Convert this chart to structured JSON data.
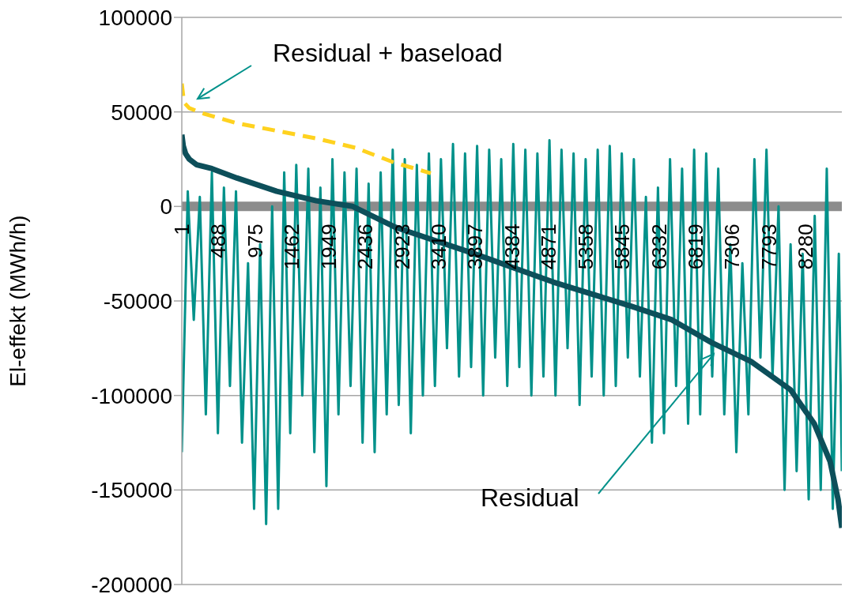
{
  "chart_data": {
    "type": "line",
    "ylabel": "El-effekt (MWh/h)",
    "xlim": [
      1,
      8760
    ],
    "xticks": [
      1,
      488,
      975,
      1462,
      1949,
      2436,
      2923,
      3410,
      3897,
      4384,
      4871,
      5358,
      5845,
      6332,
      6819,
      7306,
      7793,
      8280
    ],
    "annotations": [
      {
        "text": "Residual",
        "x": 7060,
        "y": -78000
      }
    ],
    "ylim": [
      -200000,
      100000
    ],
    "yticks": [
      -200000,
      -150000,
      -100000,
      -50000,
      0,
      50000,
      100000
    ],
    "grid": "y",
    "series": [
      {
        "color": "#00918a",
        "x": [
          1,
          80,
          160,
          240,
          320,
          400,
          480,
          560,
          640,
          720,
          800,
          880,
          960,
          1040,
          1120,
          1200,
          1280,
          1360,
          1440,
          1520,
          1600,
          1680,
          1760,
          1840,
          1920,
          2000,
          2080,
          2160,
          2240,
          2320,
          2400,
          2480,
          2560,
          2640,
          2720,
          2800,
          2880,
          2960,
          3040,
          3120,
          3200,
          3280,
          3360,
          3440,
          3520,
          3600,
          3680,
          3760,
          3840,
          3920,
          4000,
          4080,
          4160,
          4240,
          4320,
          4400,
          4480,
          4560,
          4640,
          4720,
          4800,
          4880,
          4960,
          5040,
          5120,
          5200,
          5280,
          5360,
          5440,
          5520,
          5600,
          5680,
          5760,
          5840,
          5920,
          6000,
          6080,
          6160,
          6240,
          6320,
          6400,
          6480,
          6560,
          6640,
          6720,
          6800,
          6880,
          6960,
          7040,
          7120,
          7200,
          7280,
          7360,
          7440,
          7520,
          7600,
          7680,
          7760,
          7840,
          7920,
          8000,
          8080,
          8160,
          8240,
          8320,
          8400,
          8480,
          8560,
          8640,
          8720,
          8760
        ],
        "values": [
          -130000,
          8000,
          -60000,
          5000,
          -110000,
          18000,
          -120000,
          10000,
          -95000,
          8000,
          -125000,
          -30000,
          -160000,
          -20000,
          -168000,
          0,
          -160000,
          18000,
          -120000,
          22000,
          -100000,
          20000,
          -130000,
          10000,
          -148000,
          25000,
          -110000,
          18000,
          -95000,
          20000,
          -125000,
          12000,
          -130000,
          18000,
          -110000,
          30000,
          -105000,
          25000,
          -120000,
          22000,
          -100000,
          28000,
          -95000,
          25000,
          -75000,
          33000,
          -90000,
          28000,
          -85000,
          32000,
          -100000,
          30000,
          -80000,
          25000,
          -95000,
          33000,
          -85000,
          30000,
          -100000,
          28000,
          -90000,
          35000,
          -100000,
          30000,
          -75000,
          28000,
          -105000,
          25000,
          -90000,
          30000,
          -100000,
          32000,
          -95000,
          28000,
          -80000,
          25000,
          -90000,
          5000,
          -125000,
          10000,
          -120000,
          25000,
          -95000,
          20000,
          -115000,
          30000,
          -110000,
          28000,
          -90000,
          20000,
          -110000,
          -20000,
          -130000,
          -30000,
          -110000,
          25000,
          -80000,
          30000,
          -90000,
          0,
          -150000,
          -20000,
          -140000,
          -25000,
          -155000,
          -5000,
          -150000,
          20000,
          -160000,
          -25000,
          -140000
        ]
      },
      {
        "color": "#0d4f5a",
        "x": [
          1,
          20,
          50,
          100,
          200,
          400,
          734,
          1260,
          1784,
          2270,
          2833,
          3880,
          4930,
          5980,
          6505,
          7030,
          7555,
          8080,
          8395,
          8605,
          8710,
          8760
        ],
        "values": [
          38000,
          32000,
          28000,
          25000,
          22000,
          20000,
          15000,
          8000,
          3000,
          0,
          -11000,
          -25000,
          -40000,
          -53000,
          -60000,
          -72000,
          -82000,
          -97000,
          -115000,
          -135000,
          -155000,
          -170000
        ]
      },
      {
        "name": "Residual + baseload",
        "color": "#ffd21f",
        "line_style": "dashed",
        "x": [
          1,
          30,
          100,
          300,
          734,
          1260,
          1784,
          2308,
          2833,
          3100,
          3305
        ],
        "values": [
          65000,
          55000,
          52000,
          49000,
          44000,
          40000,
          36000,
          31000,
          23000,
          20000,
          17500
        ]
      }
    ]
  }
}
